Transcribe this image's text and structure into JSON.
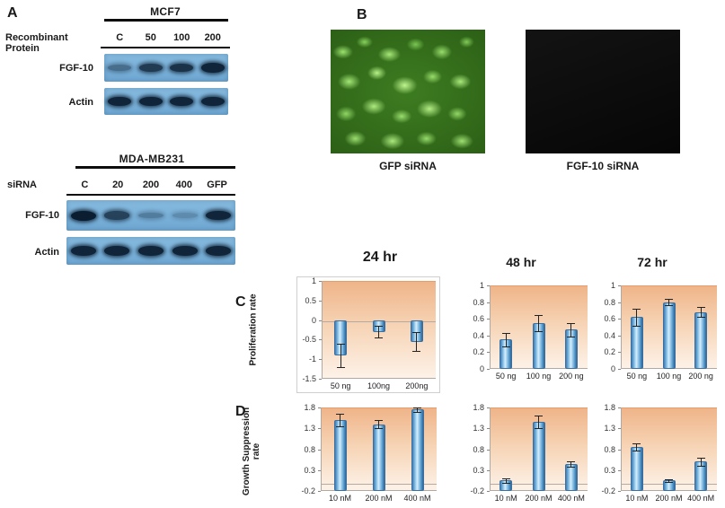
{
  "panel_a": {
    "label": "A",
    "blots": [
      {
        "title": "MCF7",
        "row_label": "Recombinant Protein",
        "lanes": [
          "C",
          "50",
          "100",
          "200"
        ],
        "rows": [
          {
            "name": "FGF-10",
            "intensities": [
              0.45,
              0.8,
              0.85,
              0.95
            ]
          },
          {
            "name": "Actin",
            "intensities": [
              0.95,
              0.95,
              0.95,
              0.95
            ]
          }
        ]
      },
      {
        "title": "MDA-MB231",
        "row_label": "siRNA",
        "lanes": [
          "C",
          "20",
          "200",
          "400",
          "GFP"
        ],
        "rows": [
          {
            "name": "FGF-10",
            "intensities": [
              1.0,
              0.75,
              0.35,
              0.25,
              0.95
            ]
          },
          {
            "name": "Actin",
            "intensities": [
              0.95,
              0.95,
              0.95,
              0.95,
              0.95
            ]
          }
        ]
      }
    ]
  },
  "panel_b": {
    "label": "B",
    "captions": [
      "GFP siRNA",
      "FGF-10 siRNA"
    ]
  },
  "panel_c": {
    "label": "C",
    "ylabel": "Proliferation rate"
  },
  "panel_d": {
    "label": "D",
    "ylabel": "Growth Suppression rate"
  },
  "colors": {
    "bar_blue": "#3c7db8",
    "plot_top_orange": "#efb489",
    "blot_blue": "#79b0d8",
    "band_dark": "#0b1e31",
    "gfp_green": "#2e6616"
  },
  "chart_data": [
    {
      "id": "c1",
      "type": "bar",
      "title": "24 hr",
      "categories": [
        "50 ng",
        "100ng",
        "200ng"
      ],
      "values": [
        -0.9,
        -0.3,
        -0.55
      ],
      "errors": [
        0.3,
        0.15,
        0.25
      ],
      "ylim": [
        -1.5,
        1
      ],
      "yticks": [
        1,
        0.5,
        0,
        -0.5,
        -1,
        -1.5
      ],
      "baseline": 0,
      "ylabel": "Proliferation rate",
      "grid": false,
      "legend": "none"
    },
    {
      "id": "c2",
      "type": "bar",
      "title": "48 hr",
      "categories": [
        "50 ng",
        "100 ng",
        "200 ng"
      ],
      "values": [
        0.35,
        0.55,
        0.47
      ],
      "errors": [
        0.08,
        0.1,
        0.08
      ],
      "ylim": [
        0,
        1
      ],
      "yticks": [
        1,
        0.8,
        0.6,
        0.4,
        0.2,
        0
      ],
      "baseline": 0,
      "ylabel": "Proliferation rate",
      "grid": false,
      "legend": "none"
    },
    {
      "id": "c3",
      "type": "bar",
      "title": "72 hr",
      "categories": [
        "50 ng",
        "100 ng",
        "200 ng"
      ],
      "values": [
        0.62,
        0.8,
        0.68
      ],
      "errors": [
        0.1,
        0.04,
        0.06
      ],
      "ylim": [
        0,
        1
      ],
      "yticks": [
        1,
        0.8,
        0.6,
        0.4,
        0.2,
        0
      ],
      "baseline": 0,
      "ylabel": "Proliferation rate",
      "grid": false,
      "legend": "none"
    },
    {
      "id": "d1",
      "type": "bar",
      "title": "",
      "categories": [
        "10 nM",
        "200 nM",
        "400 nM"
      ],
      "values": [
        1.5,
        1.4,
        1.75
      ],
      "errors": [
        0.15,
        0.1,
        0.05
      ],
      "ylim": [
        -0.2,
        1.8
      ],
      "yticks": [
        1.8,
        1.3,
        0.8,
        0.3,
        -0.2
      ],
      "baseline": -0.2,
      "ylabel": "Growth Suppression rate",
      "grid": false,
      "legend": "none"
    },
    {
      "id": "d2",
      "type": "bar",
      "title": "",
      "categories": [
        "10 nM",
        "200 nM",
        "400 nM"
      ],
      "values": [
        0.05,
        1.45,
        0.45
      ],
      "errors": [
        0.05,
        0.15,
        0.06
      ],
      "ylim": [
        -0.2,
        1.8
      ],
      "yticks": [
        1.8,
        1.3,
        0.8,
        0.3,
        -0.2
      ],
      "baseline": -0.2,
      "ylabel": "Growth Suppression rate",
      "grid": false,
      "legend": "none"
    },
    {
      "id": "d3",
      "type": "bar",
      "title": "",
      "categories": [
        "10 nM",
        "200 nM",
        "400 nM"
      ],
      "values": [
        0.85,
        0.05,
        0.5
      ],
      "errors": [
        0.08,
        0.04,
        0.1
      ],
      "ylim": [
        -0.2,
        1.8
      ],
      "yticks": [
        1.8,
        1.3,
        0.8,
        0.3,
        -0.2
      ],
      "baseline": -0.2,
      "ylabel": "Growth Suppression rate",
      "grid": false,
      "legend": "none"
    }
  ]
}
